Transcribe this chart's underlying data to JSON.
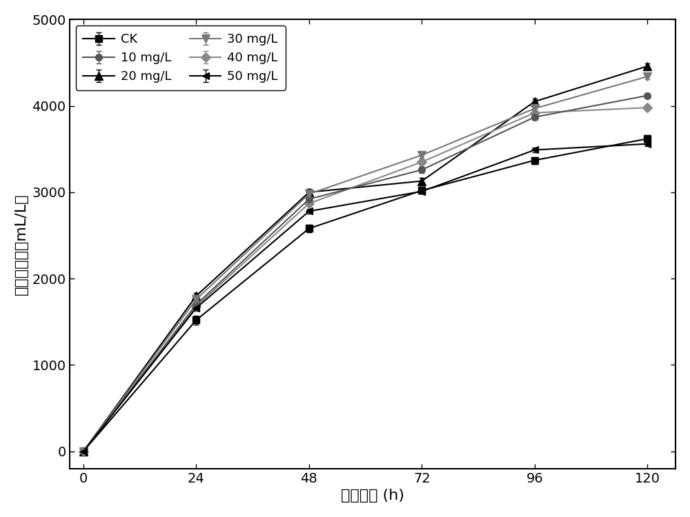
{
  "x": [
    0,
    24,
    48,
    72,
    96,
    120
  ],
  "series": [
    {
      "label": "CK",
      "y": [
        0,
        1520,
        2580,
        3020,
        3370,
        3620
      ],
      "yerr": [
        10,
        50,
        40,
        40,
        40,
        40
      ],
      "color": "#000000",
      "marker": "s",
      "markersize": 7,
      "linewidth": 1.5
    },
    {
      "label": "20 mg/L",
      "y": [
        0,
        1800,
        3000,
        3130,
        4050,
        4460
      ],
      "yerr": [
        10,
        35,
        35,
        35,
        35,
        30
      ],
      "color": "#000000",
      "marker": "^",
      "markersize": 8,
      "linewidth": 1.5
    },
    {
      "label": "40 mg/L",
      "y": [
        0,
        1680,
        2870,
        3350,
        3920,
        3980
      ],
      "yerr": [
        10,
        30,
        30,
        30,
        30,
        30
      ],
      "color": "#888888",
      "marker": "D",
      "markersize": 7,
      "linewidth": 1.5
    },
    {
      "label": "10 mg/L",
      "y": [
        0,
        1700,
        2920,
        3260,
        3870,
        4120
      ],
      "yerr": [
        10,
        40,
        30,
        35,
        35,
        30
      ],
      "color": "#555555",
      "marker": "o",
      "markersize": 7,
      "linewidth": 1.5
    },
    {
      "label": "30 mg/L",
      "y": [
        0,
        1760,
        2980,
        3430,
        3970,
        4340
      ],
      "yerr": [
        10,
        35,
        30,
        30,
        30,
        30
      ],
      "color": "#777777",
      "marker": "v",
      "markersize": 8,
      "linewidth": 1.5
    },
    {
      "label": "50 mg/L",
      "y": [
        0,
        1660,
        2780,
        3010,
        3490,
        3560
      ],
      "yerr": [
        10,
        30,
        25,
        25,
        25,
        25
      ],
      "color": "#000000",
      "marker": "<",
      "markersize": 7,
      "linewidth": 1.5
    }
  ],
  "xlabel": "发酵时间 (h)",
  "ylabel": "累积产氢量（mL/L）",
  "xlim": [
    -3,
    126
  ],
  "ylim": [
    -200,
    5000
  ],
  "yticks": [
    0,
    1000,
    2000,
    3000,
    4000,
    5000
  ],
  "xticks": [
    0,
    24,
    48,
    72,
    96,
    120
  ],
  "legend_ncol": 2,
  "legend_loc": "upper left",
  "fontsize_tick": 14,
  "fontsize_label": 16,
  "fontsize_legend": 13
}
